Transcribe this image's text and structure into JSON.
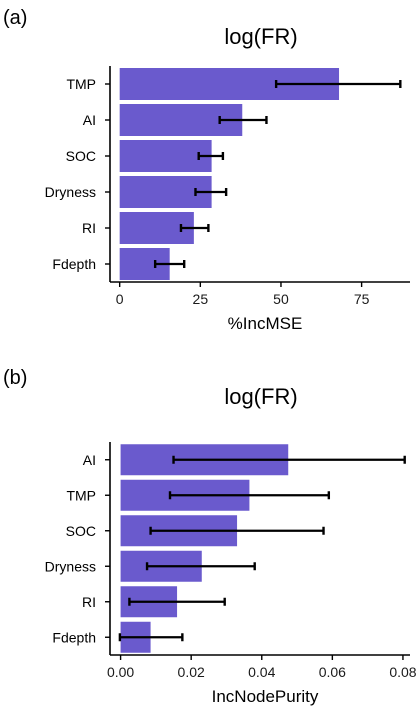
{
  "colors": {
    "bar": "#6a5acd",
    "error_bar": "#000000",
    "axis": "#000000"
  },
  "chart_data": [
    {
      "panel_label": "(a)",
      "type": "bar",
      "orientation": "horizontal",
      "title": "log(FR)",
      "xlabel": "%IncMSE",
      "ylabel": "",
      "xlim": [
        -3,
        90
      ],
      "ticks": [
        0,
        25,
        50,
        75
      ],
      "tick_labels": [
        "0",
        "25",
        "50",
        "75"
      ],
      "grid": false,
      "categories": [
        "TMP",
        "AI",
        "SOC",
        "Dryness",
        "RI",
        "Fdepth"
      ],
      "values": [
        68,
        38,
        28.5,
        28.5,
        23,
        15.5
      ],
      "error_low": [
        48.5,
        31,
        24.5,
        23.5,
        19,
        11
      ],
      "error_high": [
        87,
        45.5,
        32,
        33,
        27.5,
        20
      ]
    },
    {
      "panel_label": "(b)",
      "type": "bar",
      "orientation": "horizontal",
      "title": "log(FR)",
      "xlabel": "IncNodePurity",
      "ylabel": "",
      "xlim": [
        -0.003,
        0.082
      ],
      "ticks": [
        0,
        0.02,
        0.04,
        0.06,
        0.08
      ],
      "tick_labels": [
        "0.00",
        "0.02",
        "0.04",
        "0.06",
        "0.08"
      ],
      "grid": false,
      "categories": [
        "AI",
        "TMP",
        "SOC",
        "Dryness",
        "RI",
        "Fdepth"
      ],
      "values": [
        0.0475,
        0.0365,
        0.033,
        0.023,
        0.016,
        0.0085
      ],
      "error_low": [
        0.015,
        0.014,
        0.0085,
        0.0075,
        0.0025,
        -0.0002
      ],
      "error_high": [
        0.0805,
        0.059,
        0.0575,
        0.038,
        0.0295,
        0.0175
      ]
    }
  ]
}
